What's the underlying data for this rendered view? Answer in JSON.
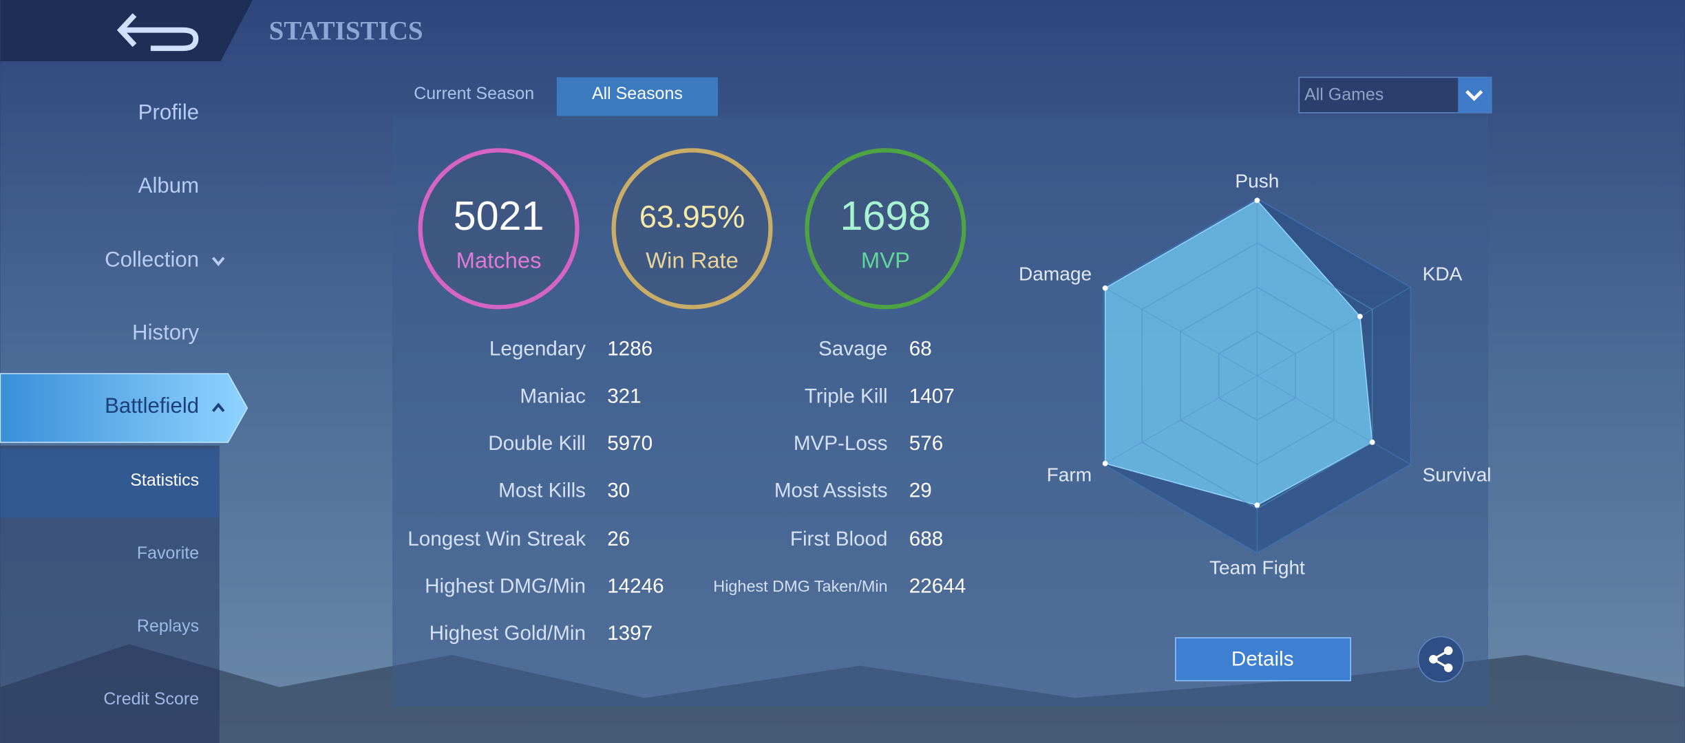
{
  "header": {
    "title": "STATISTICS"
  },
  "nav": [
    "Profile",
    "Album",
    "Collection",
    "History",
    "Battlefield"
  ],
  "subnav": [
    "Statistics",
    "Favorite",
    "Replays",
    "Credit Score"
  ],
  "tabs": [
    "Current Season",
    "All Seasons"
  ],
  "filter": "All Games",
  "summary": [
    {
      "value": "5021",
      "label": "Matches"
    },
    {
      "value": "63.95%",
      "label": "Win Rate"
    },
    {
      "value": "1698",
      "label": "MVP"
    }
  ],
  "stats_left": [
    [
      "Legendary",
      "1286"
    ],
    [
      "Maniac",
      "321"
    ],
    [
      "Double Kill",
      "5970"
    ],
    [
      "Most Kills",
      "30"
    ],
    [
      "Longest Win Streak",
      "26"
    ],
    [
      "Highest DMG/Min",
      "14246"
    ],
    [
      "Highest Gold/Min",
      "1397"
    ]
  ],
  "stats_right": [
    [
      "Savage",
      "68"
    ],
    [
      "Triple Kill",
      "1407"
    ],
    [
      "MVP-Loss",
      "576"
    ],
    [
      "Most Assists",
      "29"
    ],
    [
      "First Blood",
      "688"
    ],
    [
      "Highest DMG Taken/Min",
      "22644"
    ]
  ],
  "chart_data": {
    "type": "radar",
    "categories": [
      "Push",
      "KDA",
      "Survival",
      "Team Fight",
      "Farm",
      "Damage"
    ],
    "values": [
      99,
      67,
      75,
      73,
      99,
      99
    ],
    "rlim": [
      0,
      100
    ],
    "color": "#6cc0e8"
  },
  "buttons": {
    "details": "Details"
  }
}
